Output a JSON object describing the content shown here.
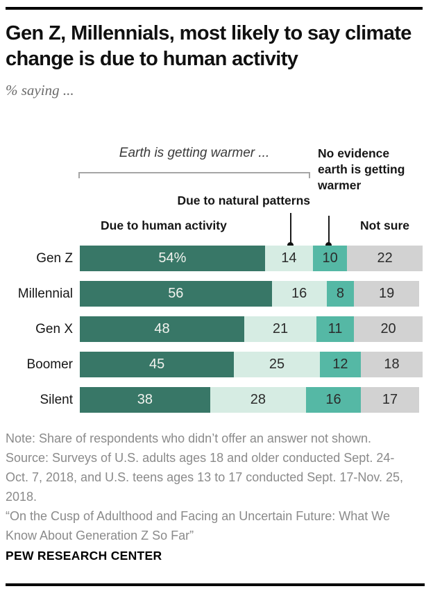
{
  "header": {
    "title": "Gen Z, Millennials, most likely to say climate change is due to human activity",
    "subtitle": "% saying ..."
  },
  "annotations": {
    "group_bracket_label": "Earth is getting warmer ...",
    "natural_label": "Due to natural patterns",
    "no_evidence_label": "No evidence earth is getting warmer",
    "human_label": "Due to human activity",
    "not_sure_label": "Not sure"
  },
  "chart_data": {
    "type": "bar",
    "stacked": true,
    "orientation": "horizontal",
    "unit": "percent",
    "xlim": [
      0,
      100
    ],
    "grid": false,
    "categories": [
      "Gen Z",
      "Millennial",
      "Gen X",
      "Boomer",
      "Silent"
    ],
    "series": [
      {
        "name": "Due to human activity",
        "color": "#387767",
        "text_color": "#f2f3ef",
        "values": [
          54,
          56,
          48,
          45,
          38
        ]
      },
      {
        "name": "Due to natural patterns",
        "color": "#d6ece3",
        "text_color": "#2b2b2b",
        "values": [
          14,
          16,
          21,
          25,
          28
        ]
      },
      {
        "name": "No evidence earth is getting warmer",
        "color": "#55b8a5",
        "text_color": "#2b2b2b",
        "values": [
          10,
          8,
          11,
          12,
          16
        ]
      },
      {
        "name": "Not sure",
        "color": "#d2d2d2",
        "text_color": "#2b2b2b",
        "values": [
          22,
          19,
          20,
          18,
          17
        ]
      }
    ],
    "display_values": [
      [
        "54%",
        "14",
        "10",
        "22"
      ],
      [
        "56",
        "16",
        "8",
        "19"
      ],
      [
        "48",
        "21",
        "11",
        "20"
      ],
      [
        "45",
        "25",
        "12",
        "18"
      ],
      [
        "38",
        "28",
        "16",
        "17"
      ]
    ]
  },
  "footer": {
    "note": "Note: Share of respondents who didn’t offer an answer not shown.",
    "source": "Source: Surveys of U.S. adults ages 18 and older conducted Sept. 24-Oct. 7, 2018, and U.S. teens ages 13 to 17 conducted Sept. 17-Nov. 25, 2018.",
    "report": "“On the Cusp of Adulthood and Facing an Uncertain Future: What We Know About Generation Z So Far”",
    "brand": "PEW RESEARCH CENTER"
  }
}
